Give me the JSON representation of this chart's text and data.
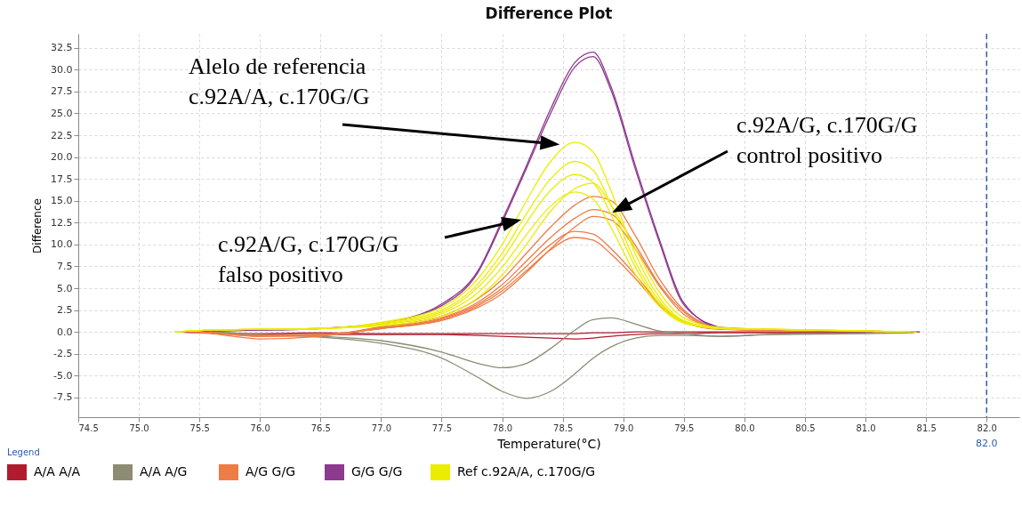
{
  "chart_data": {
    "type": "line",
    "title": "Difference Plot",
    "xlabel": "Temperature(°C)",
    "ylabel": "Difference",
    "legend_title": "Legend",
    "legend": "bottom",
    "grid": true,
    "line_style": "solid",
    "xlim": [
      74.5,
      82.27
    ],
    "xticks": [
      74.5,
      {
        "value": 75,
        "label": "75.0"
      },
      75.5,
      {
        "value": 76,
        "label": "76.0"
      },
      76.5,
      {
        "value": 77,
        "label": "77.0"
      },
      77.5,
      {
        "value": 78,
        "label": "78.0"
      },
      78.5,
      {
        "value": 79,
        "label": "79.0"
      },
      79.5,
      {
        "value": 80,
        "label": "80.0"
      },
      80.5,
      {
        "value": 81,
        "label": "81.0"
      },
      81.5,
      {
        "value": 82,
        "label": "82.0"
      }
    ],
    "ylim": [
      -9.75,
      34.1
    ],
    "yticks": [
      -7.5,
      {
        "value": -5,
        "label": "-5.0"
      },
      -2.5,
      {
        "value": 0,
        "label": "0.0"
      },
      2.5,
      {
        "value": 5,
        "label": "5.0"
      },
      7.5,
      {
        "value": 10,
        "label": "10.0"
      },
      12.5,
      {
        "value": 15,
        "label": "15.0"
      },
      17.5,
      {
        "value": 20,
        "label": "20.0"
      },
      22.5,
      {
        "value": 25,
        "label": "25.0"
      },
      27.5,
      {
        "value": 30,
        "label": "30.0"
      },
      32.5
    ],
    "series": [
      {
        "name": "A/A A/A",
        "color": "#b01c2e",
        "x": [
          75.3,
          75.6,
          76.0,
          76.5,
          77.0,
          77.5,
          77.8,
          78.0,
          78.2,
          78.4,
          78.6,
          78.75,
          78.9,
          79.1,
          79.3,
          79.5,
          79.8,
          80.2,
          81.0,
          81.45
        ],
        "values": [
          0,
          -0.1,
          -0.2,
          -0.1,
          -0.2,
          -0.2,
          -0.2,
          -0.2,
          -0.2,
          -0.2,
          -0.2,
          -0.1,
          -0.1,
          0,
          0,
          0,
          0,
          0,
          0,
          0
        ]
      },
      {
        "color": "#b01c2e",
        "x": [
          75.6,
          76.0,
          76.5,
          77.0,
          77.5,
          77.8,
          78.0,
          78.2,
          78.4,
          78.6,
          78.75,
          78.9,
          79.1,
          79.3,
          79.5,
          79.8,
          80.2,
          81.0
        ],
        "values": [
          -0.2,
          -0.3,
          -0.3,
          -0.3,
          -0.3,
          -0.4,
          -0.5,
          -0.6,
          -0.7,
          -0.8,
          -0.7,
          -0.5,
          -0.3,
          -0.2,
          -0.2,
          -0.1,
          -0.1,
          -0.1
        ]
      },
      {
        "name": "A/A A/G",
        "color": "#8c8c74",
        "x": [
          75.3,
          75.6,
          76.0,
          76.5,
          77.0,
          77.5,
          77.8,
          78.0,
          78.2,
          78.4,
          78.6,
          78.75,
          78.9,
          79.1,
          79.3,
          79.5,
          79.8,
          80.2,
          81.0,
          81.4
        ],
        "values": [
          0,
          0,
          -0.3,
          -0.5,
          -1.0,
          -2.3,
          -3.6,
          -4.1,
          -3.6,
          -1.9,
          0.2,
          1.4,
          1.6,
          0.9,
          0.1,
          -0.2,
          -0.5,
          -0.3,
          -0.1,
          0
        ]
      },
      {
        "color": "#8c8c74",
        "x": [
          75.6,
          76.0,
          76.5,
          77.0,
          77.5,
          77.8,
          78.0,
          78.2,
          78.4,
          78.6,
          78.75,
          78.9,
          79.1,
          79.3,
          79.5,
          79.8,
          80.2,
          81.0,
          81.4
        ],
        "values": [
          -0.1,
          -0.3,
          -0.6,
          -1.3,
          -3.0,
          -5.2,
          -6.8,
          -7.6,
          -6.8,
          -4.8,
          -3.0,
          -1.7,
          -0.7,
          -0.4,
          -0.4,
          -0.5,
          -0.3,
          -0.2,
          -0.1
        ]
      },
      {
        "name": "A/G G/G",
        "color": "#ee7c46",
        "x": [
          75.3,
          75.6,
          76.0,
          76.5,
          77.0,
          77.5,
          77.8,
          78.0,
          78.2,
          78.4,
          78.6,
          78.75,
          78.9,
          79.1,
          79.3,
          79.5,
          79.8,
          80.2,
          81.0,
          81.35
        ],
        "values": [
          0,
          -0.1,
          -0.5,
          -0.4,
          0.6,
          1.8,
          3.8,
          6,
          9,
          12,
          14.5,
          15.5,
          15,
          11,
          6,
          2.5,
          0.5,
          0.2,
          0.1,
          0
        ]
      },
      {
        "color": "#ee7c46",
        "x": [
          75.3,
          75.6,
          76.0,
          76.5,
          77.0,
          77.5,
          77.8,
          78.0,
          78.2,
          78.4,
          78.6,
          78.75,
          78.9,
          79.1,
          79.3,
          79.5,
          79.8,
          80.2,
          81.0,
          81.3
        ],
        "values": [
          0,
          -0.2,
          -0.8,
          -0.5,
          0.5,
          1.6,
          3.4,
          5.4,
          8.1,
          10.8,
          13,
          14,
          13.5,
          9.9,
          5.4,
          2.3,
          0.4,
          0.2,
          0.1,
          0
        ]
      },
      {
        "color": "#ee7c46",
        "x": [
          75.3,
          75.6,
          76.0,
          76.5,
          77.0,
          77.5,
          77.8,
          78.0,
          78.2,
          78.4,
          78.6,
          78.75,
          78.9,
          79.1,
          79.3,
          79.5,
          79.8,
          80.2,
          81.0,
          81.25
        ],
        "values": [
          0,
          -0.1,
          -0.4,
          -0.3,
          0.4,
          1.3,
          2.8,
          4.4,
          6.8,
          9.5,
          12,
          13.2,
          12.8,
          9.5,
          5.2,
          2,
          0.4,
          0.2,
          0.1,
          0
        ]
      },
      {
        "color": "#ee7c46",
        "x": [
          75.3,
          75.6,
          76.0,
          76.5,
          77.0,
          77.5,
          77.8,
          78.0,
          78.2,
          78.4,
          78.6,
          78.75,
          78.9,
          79.1,
          79.3,
          79.5,
          79.8,
          80.2,
          81.0,
          81.2
        ],
        "values": [
          0,
          -0.1,
          -0.5,
          -0.4,
          0.4,
          1.5,
          3.2,
          5,
          7.5,
          10,
          11.5,
          11.2,
          9.5,
          6.5,
          3.2,
          1.2,
          0.3,
          0.2,
          0.1,
          0
        ]
      },
      {
        "color": "#ee7c46",
        "x": [
          75.3,
          75.6,
          76.0,
          76.5,
          77.0,
          77.5,
          77.8,
          78.0,
          78.2,
          78.4,
          78.6,
          78.75,
          78.9,
          79.1,
          79.3,
          79.5,
          79.8,
          80.2,
          81.0,
          81.15
        ],
        "values": [
          0,
          -0.1,
          -0.4,
          -0.3,
          0.4,
          1.4,
          3,
          4.7,
          7,
          9.4,
          10.8,
          10.5,
          8.9,
          6.1,
          3,
          1.1,
          0.3,
          0.2,
          0.1,
          0
        ]
      },
      {
        "name": "G/G G/G",
        "color": "#8e3a8e",
        "x": [
          75.3,
          75.6,
          76.0,
          76.5,
          77.0,
          77.5,
          77.8,
          78.0,
          78.2,
          78.4,
          78.6,
          78.75,
          78.9,
          79.1,
          79.3,
          79.5,
          79.8,
          80.2
        ],
        "values": [
          0,
          0.1,
          0.2,
          0.4,
          1.0,
          3.2,
          7,
          12.8,
          19,
          25.5,
          30.8,
          32,
          28,
          19,
          10.5,
          3.3,
          0.5,
          0.3
        ]
      },
      {
        "color": "#8e3a8e",
        "x": [
          75.6,
          76.0,
          76.5,
          77.0,
          77.5,
          77.8,
          78.0,
          78.2,
          78.4,
          78.6,
          78.75,
          78.9,
          79.1,
          79.3,
          79.5,
          79.8
        ],
        "values": [
          0.1,
          0.2,
          0.4,
          1.0,
          3.0,
          6.8,
          12.5,
          18.7,
          25,
          30.3,
          31.5,
          27.6,
          18.6,
          10.2,
          3.1,
          0.5
        ]
      },
      {
        "name": "Ref c.92A/A, c.170G/G",
        "color": "#ecec00",
        "x": [
          75.3,
          75.6,
          76.0,
          76.5,
          77.0,
          77.5,
          77.8,
          78.0,
          78.2,
          78.4,
          78.6,
          78.75,
          78.9,
          79.1,
          79.3,
          79.5,
          79.8,
          80.2,
          81.0,
          81.1
        ],
        "values": [
          0,
          0.2,
          0.3,
          0.4,
          1.1,
          2.8,
          6.1,
          10,
          15,
          19.5,
          21.7,
          20.6,
          16.1,
          8.9,
          3.9,
          1.3,
          0.4,
          0.3,
          0.1,
          0
        ]
      },
      {
        "color": "#ecec00",
        "x": [
          75.3,
          75.6,
          76.0,
          76.5,
          77.0,
          77.5,
          77.8,
          78.0,
          78.2,
          78.4,
          78.6,
          78.75,
          78.9,
          79.1,
          79.3,
          79.5,
          79.8,
          80.2,
          81.0,
          81.42
        ],
        "values": [
          0,
          0.2,
          0.3,
          0.4,
          1.0,
          2.5,
          5.5,
          9,
          13.5,
          17.5,
          19.5,
          18.5,
          14.5,
          8,
          3.5,
          1.2,
          0.4,
          0.3,
          0.1,
          0
        ]
      },
      {
        "color": "#ecec00",
        "x": [
          75.3,
          75.6,
          76.0,
          76.5,
          77.0,
          77.5,
          77.8,
          78.0,
          78.2,
          78.4,
          78.6,
          78.75,
          78.9,
          79.1,
          79.3,
          79.5,
          79.8,
          80.2,
          81.0,
          81.37
        ],
        "values": [
          0,
          0.2,
          0.3,
          0.4,
          0.9,
          2.3,
          5.1,
          8.3,
          12.5,
          16.2,
          18,
          17.1,
          13.4,
          7.4,
          3.2,
          1.1,
          0.4,
          0.3,
          0.1,
          0
        ]
      },
      {
        "color": "#ecec00",
        "x": [
          75.3,
          75.6,
          76.0,
          76.5,
          77.0,
          77.5,
          77.8,
          78.0,
          78.2,
          78.4,
          78.6,
          78.75,
          78.9,
          79.1,
          79.3,
          79.5,
          79.8,
          80.2,
          81.0,
          81.32
        ],
        "values": [
          0,
          0.2,
          0.3,
          0.4,
          0.8,
          2.1,
          4.5,
          7.4,
          11.1,
          14.4,
          16,
          15.2,
          11.9,
          6.6,
          2.9,
          1,
          0.4,
          0.3,
          0.1,
          0
        ]
      },
      {
        "color": "#ecec00",
        "x": [
          75.3,
          75.6,
          76.0,
          76.5,
          77.0,
          77.5,
          77.8,
          78.0,
          78.2,
          78.4,
          78.6,
          78.75,
          78.9,
          79.1,
          79.3,
          79.5,
          79.8,
          80.2,
          81.0,
          81.27
        ],
        "values": [
          0,
          0.2,
          0.3,
          0.4,
          0.7,
          1.8,
          3.9,
          6.5,
          10,
          13.8,
          16.4,
          17,
          14.5,
          9.5,
          4.5,
          1.6,
          0.5,
          0.3,
          0.1,
          0
        ]
      }
    ],
    "ref_lines": [
      {
        "axis": "x",
        "value": 82.0,
        "label": "82.0",
        "color": "#2e5fa8",
        "line_style": "dashed"
      }
    ],
    "annotations": [
      "Alelo de referencia\nc.92A/A, c.170G/G",
      "c.92A/G, c.170G/G\nfalso positivo",
      "c.92A/G, c.170G/G\ncontrol positivo"
    ]
  }
}
